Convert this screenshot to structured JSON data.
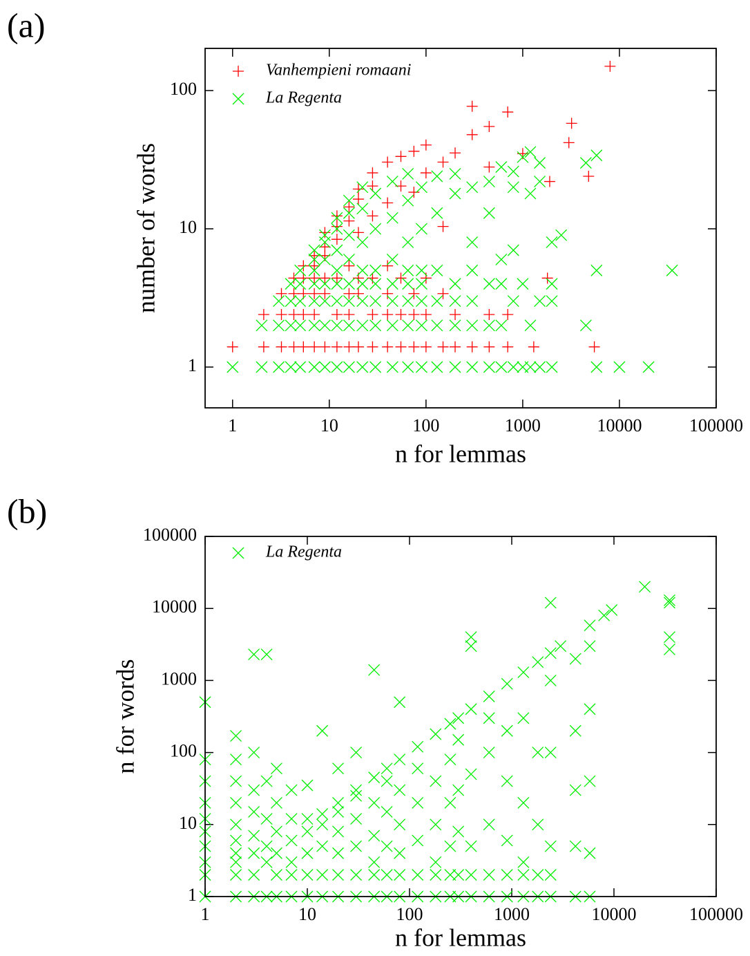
{
  "chart_data": [
    {
      "type": "scatter",
      "panel_label": "(a)",
      "xlabel": "n for lemmas",
      "ylabel": "number of words",
      "xlog": true,
      "ylog": true,
      "legend": "top-left",
      "xlim": [
        0.52,
        100000
      ],
      "ylim": [
        0.507,
        202
      ],
      "xticks": [
        1,
        10,
        100,
        1000,
        10000,
        100000
      ],
      "yticks": [
        1,
        10,
        100
      ],
      "series": [
        {
          "name": "Vanhempieni romaani",
          "color": "#ff0000",
          "marker": "plus",
          "x": [
            1,
            2.1,
            2.1,
            3.2,
            3.2,
            3.2,
            4.3,
            4.3,
            4.3,
            4.3,
            5.4,
            5.4,
            5.4,
            5.4,
            5.4,
            7,
            7,
            7,
            7,
            7,
            7,
            9,
            9,
            9,
            9,
            9,
            9,
            12,
            12,
            12,
            12,
            12,
            12,
            16,
            16,
            16,
            16,
            16,
            16,
            20,
            20,
            20,
            20,
            20,
            20,
            28,
            28,
            28,
            28,
            28,
            28,
            40,
            40,
            40,
            40,
            40,
            40,
            55,
            55,
            55,
            55,
            55,
            75,
            75,
            75,
            75,
            75,
            100,
            100,
            100,
            100,
            100,
            150,
            150,
            150,
            150,
            200,
            200,
            200,
            300,
            300,
            300,
            450,
            450,
            450,
            450,
            700,
            700,
            700,
            1000,
            1300,
            1800,
            1900,
            3000,
            3200,
            4800,
            5500,
            8000
          ],
          "values": [
            1.4,
            1.4,
            2.4,
            1.4,
            2.4,
            3.4,
            1.4,
            2.4,
            3.4,
            4.4,
            1.4,
            2.4,
            3.4,
            4.4,
            5.4,
            1.4,
            2.4,
            3.4,
            4.4,
            5.4,
            6.4,
            1.4,
            3.4,
            4.4,
            6.4,
            7.4,
            9.4,
            1.4,
            2.4,
            4.4,
            8.4,
            10.4,
            12.4,
            1.4,
            2.4,
            3.4,
            5.4,
            11.4,
            14.4,
            1.4,
            3.4,
            4.4,
            9.4,
            16.4,
            19.4,
            1.4,
            2.4,
            4.4,
            12.4,
            20.4,
            25.4,
            1.4,
            2.4,
            3.4,
            5.4,
            15.4,
            30.4,
            1.4,
            2.4,
            4.4,
            20.4,
            33.4,
            1.4,
            2.4,
            3.4,
            18.4,
            36.4,
            1.4,
            2.4,
            4.4,
            25.4,
            40.4,
            1.4,
            3.4,
            10.4,
            30.4,
            1.4,
            2.4,
            35.4,
            1.4,
            77,
            48,
            1.4,
            2.4,
            28,
            55,
            70,
            2.4,
            1.4,
            35,
            1.4,
            4.4,
            22,
            42,
            58,
            24,
            1.4,
            150
          ]
        },
        {
          "name": "La Regenta",
          "color": "#00ee00",
          "marker": "cross",
          "x": [
            1,
            2,
            2,
            3,
            3,
            3,
            4,
            4,
            4,
            4,
            5,
            5,
            5,
            5,
            5,
            7,
            7,
            7,
            7,
            7,
            7,
            7,
            9,
            9,
            9,
            9,
            9,
            9,
            9,
            12,
            12,
            12,
            12,
            12,
            12,
            12,
            12,
            16,
            16,
            16,
            16,
            16,
            16,
            16,
            16,
            22,
            22,
            22,
            22,
            22,
            22,
            22,
            22,
            30,
            30,
            30,
            30,
            30,
            30,
            30,
            45,
            45,
            45,
            45,
            45,
            45,
            45,
            65,
            65,
            65,
            65,
            65,
            65,
            65,
            65,
            90,
            90,
            90,
            90,
            90,
            90,
            90,
            130,
            130,
            130,
            130,
            130,
            130,
            200,
            200,
            200,
            200,
            200,
            200,
            300,
            300,
            300,
            300,
            300,
            300,
            450,
            450,
            450,
            450,
            450,
            600,
            600,
            600,
            600,
            600,
            800,
            800,
            800,
            800,
            800,
            1000,
            1000,
            1000,
            1200,
            1200,
            1200,
            1200,
            1500,
            1500,
            1500,
            1500,
            2000,
            2000,
            2000,
            2000,
            2500,
            4500,
            4500,
            5800,
            5800,
            5800,
            10000,
            20000,
            35000
          ],
          "values": [
            1,
            1,
            2,
            1,
            2,
            3,
            1,
            2,
            3,
            4,
            1,
            2,
            3,
            4,
            5,
            1,
            2,
            3,
            4,
            5,
            6,
            7,
            1,
            2,
            3,
            4,
            6,
            8,
            9,
            1,
            2,
            3,
            4,
            5,
            7,
            10,
            12,
            1,
            2,
            3,
            4,
            6,
            9,
            13,
            16,
            1,
            2,
            3,
            4,
            5,
            8,
            14,
            20,
            1,
            2,
            3,
            4,
            5,
            10,
            18,
            1,
            2,
            3,
            4,
            6,
            12,
            22,
            1,
            2,
            3,
            4,
            5,
            8,
            16,
            25,
            1,
            2,
            3,
            4,
            5,
            10,
            20,
            1,
            2,
            3,
            5,
            13,
            24,
            1,
            2,
            3,
            4,
            18,
            25,
            1,
            2,
            3,
            5,
            8,
            20,
            1,
            2,
            4,
            13,
            22,
            1,
            2,
            4,
            6,
            28,
            1,
            3,
            7,
            20,
            26,
            1,
            4,
            33,
            1,
            2,
            18,
            36,
            1,
            3,
            22,
            30,
            1,
            4,
            8,
            3,
            9,
            2,
            30,
            1,
            5,
            34,
            1,
            1,
            5
          ]
        }
      ]
    },
    {
      "type": "scatter",
      "panel_label": "(b)",
      "xlabel": "n for lemmas",
      "ylabel": "n for words",
      "xlog": true,
      "ylog": true,
      "legend": "top-left",
      "xlim": [
        1,
        100000
      ],
      "ylim": [
        1,
        100000
      ],
      "xticks": [
        1,
        10,
        100,
        1000,
        10000,
        100000
      ],
      "yticks": [
        1,
        10,
        100,
        1000,
        10000,
        100000
      ],
      "series": [
        {
          "name": "La Regenta",
          "color": "#00ee00",
          "marker": "cross",
          "x": [
            1,
            1,
            1,
            1,
            1,
            1,
            1,
            1,
            1,
            1,
            2,
            2,
            2,
            2,
            2,
            2,
            2,
            2,
            2,
            2,
            3,
            3,
            3,
            3,
            3,
            3,
            3,
            3,
            4,
            4,
            4,
            4,
            4,
            4,
            5,
            5,
            5,
            5,
            5,
            5,
            7,
            7,
            7,
            7,
            7,
            7,
            10,
            10,
            10,
            10,
            10,
            10,
            14,
            14,
            14,
            14,
            14,
            14,
            20,
            20,
            20,
            20,
            20,
            20,
            20,
            30,
            30,
            30,
            30,
            30,
            30,
            30,
            45,
            45,
            45,
            45,
            45,
            45,
            45,
            60,
            60,
            60,
            60,
            60,
            60,
            80,
            80,
            80,
            80,
            80,
            80,
            80,
            120,
            120,
            120,
            120,
            120,
            120,
            180,
            180,
            180,
            180,
            180,
            180,
            250,
            250,
            250,
            250,
            250,
            250,
            300,
            300,
            300,
            300,
            300,
            300,
            400,
            400,
            400,
            400,
            400,
            400,
            400,
            600,
            600,
            600,
            600,
            600,
            600,
            900,
            900,
            900,
            900,
            900,
            900,
            1300,
            1300,
            1300,
            1300,
            1300,
            1300,
            1800,
            1800,
            1800,
            1800,
            1800,
            2400,
            2400,
            2400,
            2400,
            2400,
            2400,
            2400,
            3000,
            4200,
            4200,
            4200,
            4200,
            4200,
            5800,
            5800,
            5800,
            5800,
            5800,
            5800,
            8000,
            9500,
            20000,
            35000,
            35000,
            35000,
            35000
          ],
          "values": [
            1,
            2,
            3,
            5,
            8,
            12,
            20,
            40,
            80,
            500,
            1,
            2,
            3,
            4,
            6,
            10,
            20,
            40,
            80,
            170,
            1,
            2,
            4,
            7,
            15,
            30,
            100,
            2300,
            1,
            3,
            5,
            12,
            40,
            2300,
            1,
            2,
            4,
            8,
            20,
            60,
            1,
            2,
            3,
            6,
            12,
            30,
            1,
            2,
            4,
            8,
            12,
            35,
            1,
            2,
            5,
            10,
            14,
            200,
            1,
            2,
            4,
            8,
            15,
            20,
            60,
            1,
            2,
            5,
            12,
            25,
            30,
            100,
            1,
            2,
            3,
            7,
            20,
            45,
            1400,
            1,
            2,
            5,
            15,
            40,
            60,
            1,
            2,
            4,
            10,
            30,
            80,
            500,
            1,
            2,
            6,
            20,
            60,
            120,
            1,
            2,
            3,
            10,
            40,
            180,
            1,
            2,
            5,
            20,
            80,
            250,
            1,
            2,
            8,
            30,
            300,
            150,
            1,
            2,
            5,
            50,
            400,
            3000,
            4000,
            1,
            2,
            10,
            100,
            600,
            300,
            1,
            2,
            6,
            40,
            200,
            900,
            1,
            2,
            3,
            20,
            300,
            1300,
            1,
            2,
            10,
            100,
            1800,
            1,
            2,
            5,
            100,
            2400,
            12000,
            1000,
            3000,
            1,
            5,
            30,
            200,
            2000,
            1,
            4,
            40,
            400,
            3000,
            5800,
            8000,
            9500,
            20000,
            2700,
            4000,
            12000,
            13000
          ]
        }
      ]
    }
  ]
}
